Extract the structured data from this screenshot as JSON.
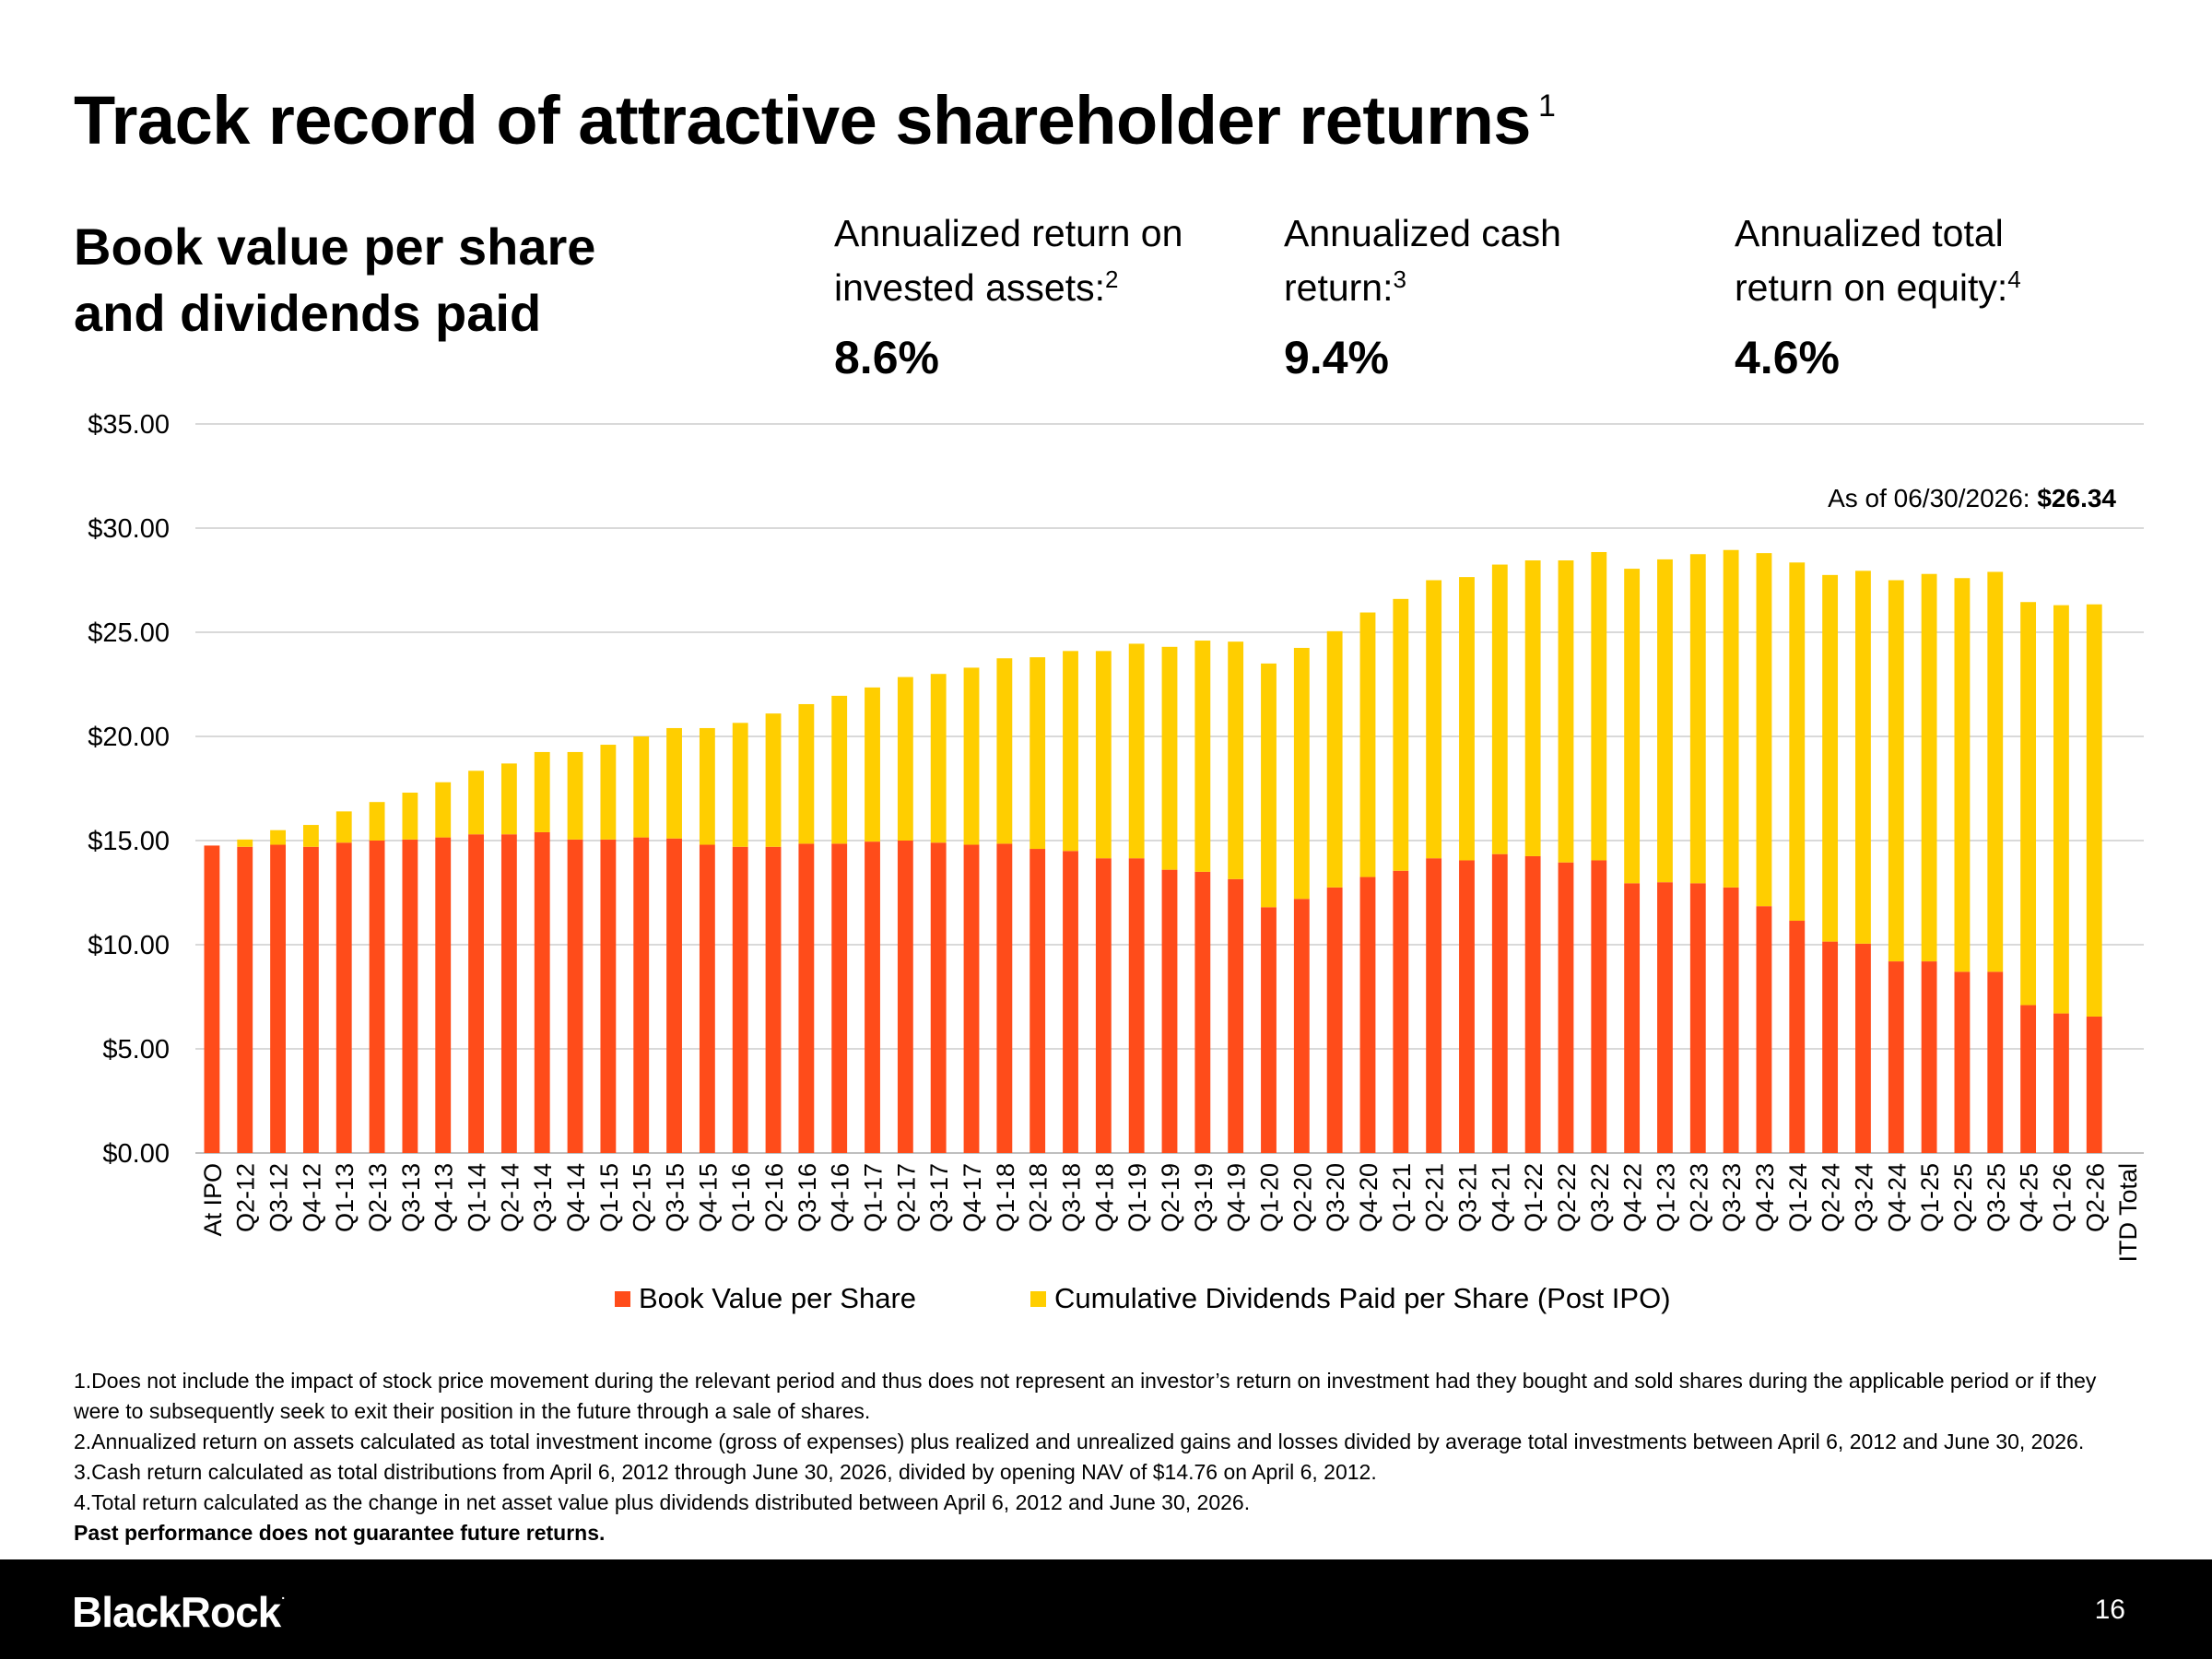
{
  "title": "Track record of attractive shareholder returns",
  "title_note": "1",
  "subtitle_line1": "Book value per share",
  "subtitle_line2": "and dividends paid",
  "stats": [
    {
      "line1": "Annualized return on",
      "line2": "invested assets:",
      "note": "2",
      "value": "8.6%"
    },
    {
      "line1": "Annualized cash",
      "line2": "return:",
      "note": "3",
      "value": "9.4%"
    },
    {
      "line1": "Annualized total",
      "line2": "return on equity:",
      "note": "4",
      "value": "4.6%"
    }
  ],
  "annotation": {
    "label": "As of 06/30/2026: ",
    "value": "$26.34"
  },
  "legend": [
    {
      "label": "Book Value per Share",
      "color": "#ff4c1a"
    },
    {
      "label": "Cumulative Dividends Paid per Share (Post IPO)",
      "color": "#ffce00"
    }
  ],
  "footnotes": {
    "f1": "1.Does not include the impact of stock price movement during the relevant period and thus does not represent an investor’s return on investment had they bought and sold shares during the applicable period or if they were to subsequently seek to exit their position in the future through a sale of shares.",
    "f2": "2.Annualized return on assets calculated as total investment income (gross of expenses) plus realized and unrealized gains and losses divided by average total investments between April 6, 2012 and June 30, 2026.",
    "f3": "3.Cash return calculated as total distributions from April 6, 2012 through June 30, 2026, divided by opening NAV of $14.76 on April 6, 2012.",
    "f4": "4.Total return calculated as the change in net asset value plus dividends distributed between April 6, 2012 and June 30, 2026.",
    "disclaimer": "Past performance does not guarantee future returns."
  },
  "footer": {
    "logo": "BlackRock",
    "logo_mark": ".",
    "page_number": "16"
  },
  "colors": {
    "book_value": "#ff4c1a",
    "dividends": "#ffce00",
    "gridline": "#d9d9d9"
  },
  "chart_data": {
    "type": "bar",
    "stacked": true,
    "ylim": [
      0,
      35
    ],
    "y_ticks": [
      "$0.00",
      "$5.00",
      "$10.00",
      "$15.00",
      "$20.00",
      "$25.00",
      "$30.00",
      "$35.00"
    ],
    "grid": true,
    "legend_position": "bottom",
    "categories": [
      "At IPO",
      "Q2-12",
      "Q3-12",
      "Q4-12",
      "Q1-13",
      "Q2-13",
      "Q3-13",
      "Q4-13",
      "Q1-14",
      "Q2-14",
      "Q3-14",
      "Q4-14",
      "Q1-15",
      "Q2-15",
      "Q3-15",
      "Q4-15",
      "Q1-16",
      "Q2-16",
      "Q3-16",
      "Q4-16",
      "Q1-17",
      "Q2-17",
      "Q3-17",
      "Q4-17",
      "Q1-18",
      "Q2-18",
      "Q3-18",
      "Q4-18",
      "Q1-19",
      "Q2-19",
      "Q3-19",
      "Q4-19",
      "Q1-20",
      "Q2-20",
      "Q3-20",
      "Q4-20",
      "Q1-21",
      "Q2-21",
      "Q3-21",
      "Q4-21",
      "Q1-22",
      "Q2-22",
      "Q3-22",
      "Q4-22",
      "Q1-23",
      "Q2-23",
      "Q3-23",
      "Q4-23",
      "Q1-24",
      "Q2-24",
      "Q3-24",
      "Q4-24",
      "Q1-25",
      "Q2-25",
      "Q3-25",
      "Q4-25",
      "Q1-26",
      "Q2-26",
      "ITD Total"
    ],
    "series": [
      {
        "name": "Book Value per Share",
        "values": [
          14.76,
          14.7,
          14.8,
          14.7,
          14.9,
          15.0,
          15.05,
          15.15,
          15.3,
          15.3,
          15.4,
          15.05,
          15.05,
          15.15,
          15.1,
          14.8,
          14.7,
          14.7,
          14.85,
          14.85,
          14.95,
          15.0,
          14.9,
          14.8,
          14.85,
          14.6,
          14.5,
          14.15,
          14.15,
          13.6,
          13.5,
          13.15,
          11.8,
          12.2,
          12.75,
          13.25,
          13.55,
          14.15,
          14.05,
          14.35,
          14.25,
          13.95,
          14.05,
          12.95,
          13.0,
          12.95,
          12.75,
          11.85,
          11.15,
          10.15,
          10.05,
          9.2,
          9.2,
          8.7,
          8.7,
          7.1,
          6.7,
          6.55,
          null
        ]
      },
      {
        "name": "Cumulative Dividends Paid per Share (Post IPO)",
        "values": [
          0,
          0.35,
          0.7,
          1.05,
          1.5,
          1.85,
          2.25,
          2.65,
          3.05,
          3.4,
          3.85,
          4.2,
          4.55,
          4.85,
          5.3,
          5.6,
          5.95,
          6.4,
          6.7,
          7.1,
          7.4,
          7.85,
          8.1,
          8.5,
          8.9,
          9.2,
          9.6,
          9.95,
          10.3,
          10.7,
          11.1,
          11.4,
          11.7,
          12.05,
          12.3,
          12.7,
          13.05,
          13.35,
          13.6,
          13.9,
          14.2,
          14.5,
          14.8,
          15.1,
          15.5,
          15.8,
          16.2,
          16.95,
          17.2,
          17.6,
          17.9,
          18.3,
          18.6,
          18.9,
          19.2,
          19.35,
          19.6,
          19.79,
          null
        ]
      }
    ]
  }
}
